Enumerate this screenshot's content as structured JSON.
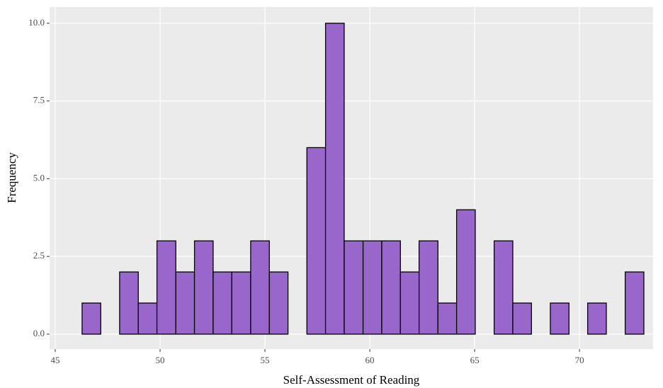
{
  "chart_data": {
    "type": "histogram",
    "x_label": "Self-Assessment of Reading",
    "y_label": "Frequency",
    "bins": [
      46.28,
      47.17,
      48.07,
      48.96,
      49.85,
      50.75,
      51.64,
      52.53,
      53.42,
      54.32,
      55.21,
      56.1,
      57.0,
      57.89,
      58.78,
      59.68,
      60.57,
      61.46,
      62.35,
      63.25,
      64.14,
      65.03,
      65.93,
      66.82,
      67.71,
      68.61,
      69.5,
      70.39,
      71.28,
      72.18,
      73.07
    ],
    "values": [
      1,
      0,
      2,
      1,
      3,
      2,
      3,
      2,
      2,
      3,
      2,
      0,
      6,
      10,
      3,
      3,
      3,
      2,
      3,
      1,
      4,
      0,
      3,
      1,
      0,
      1,
      0,
      1,
      0,
      2
    ],
    "color": "#9966cc",
    "edge_color": "#000000",
    "xlim": [
      44.73,
      73.51
    ],
    "xticks": [
      45,
      50,
      55,
      60,
      65,
      70
    ],
    "ylim": [
      -0.48,
      10.52
    ],
    "yticks": [
      {
        "value": 0,
        "label": "0.0"
      },
      2.5,
      {
        "value": 5,
        "label": "5.0"
      },
      7.5,
      {
        "value": 10,
        "label": "10.0"
      }
    ],
    "grid": true
  }
}
